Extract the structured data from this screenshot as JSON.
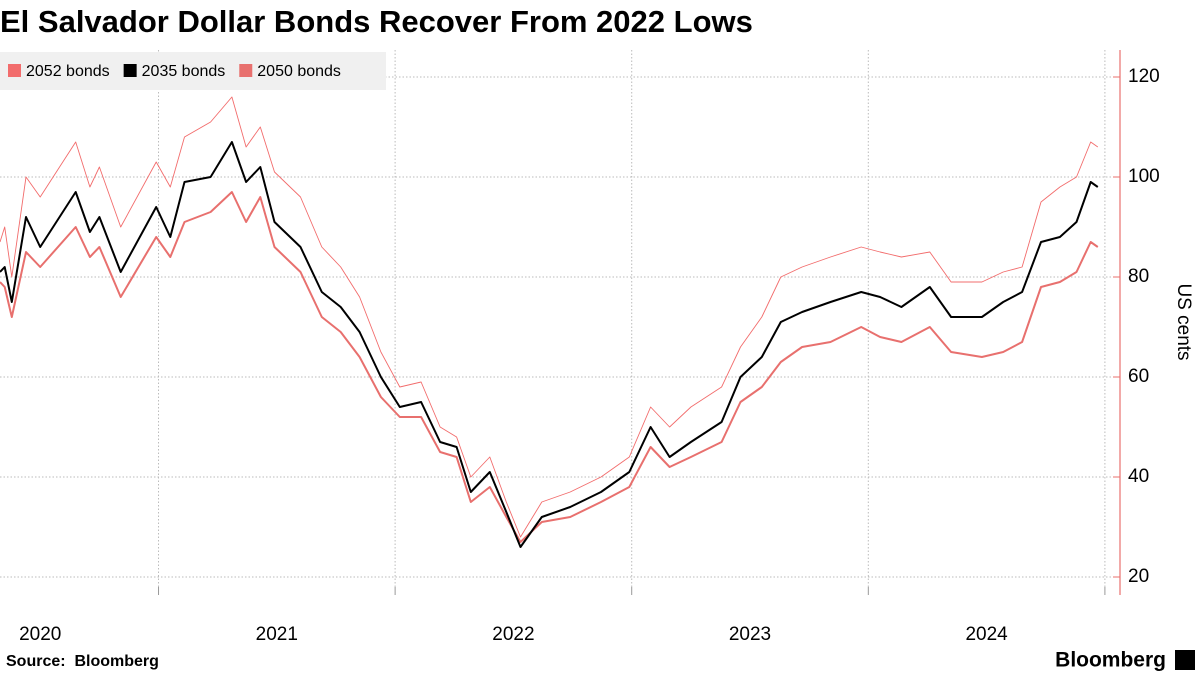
{
  "chart_data": {
    "type": "line",
    "title": "El Salvador Dollar Bonds Recover From 2022 Lows",
    "y_label": "US cents",
    "source": "Source:  Bloomberg",
    "brand": "Bloomberg",
    "legend": "top-left",
    "grid": true,
    "xlim": [
      2020.33,
      2025.03
    ],
    "xticks": [
      {
        "value": 2020,
        "label": "2020"
      },
      {
        "value": 2021,
        "label": "2021"
      },
      {
        "value": 2022,
        "label": "2022"
      },
      {
        "value": 2023,
        "label": "2023"
      },
      {
        "value": 2024,
        "label": "2024"
      }
    ],
    "xgrid": [
      2021,
      2022,
      2023,
      2024,
      2025
    ],
    "ylim": [
      16.4,
      125.4
    ],
    "yticks": [
      20,
      40,
      60,
      80,
      100,
      120
    ],
    "x": [
      2020.33,
      2020.35,
      2020.38,
      2020.44,
      2020.5,
      2020.65,
      2020.71,
      2020.75,
      2020.84,
      2020.99,
      2021.05,
      2021.11,
      2021.22,
      2021.31,
      2021.37,
      2021.43,
      2021.49,
      2021.6,
      2021.69,
      2021.77,
      2021.85,
      2021.94,
      2022.02,
      2022.11,
      2022.19,
      2022.26,
      2022.32,
      2022.4,
      2022.47,
      2022.53,
      2022.62,
      2022.74,
      2022.87,
      2022.99,
      2023.08,
      2023.16,
      2023.25,
      2023.38,
      2023.46,
      2023.55,
      2023.63,
      2023.72,
      2023.84,
      2023.97,
      2024.05,
      2024.14,
      2024.26,
      2024.35,
      2024.48,
      2024.57,
      2024.65,
      2024.73,
      2024.81,
      2024.88,
      2024.94,
      2024.97
    ],
    "series": [
      {
        "name": "2052 bonds",
        "color": "#f26c6c",
        "width": 0.9,
        "values": [
          87,
          90,
          80,
          100,
          96,
          107,
          98,
          102,
          90,
          103,
          98,
          108,
          111,
          116,
          106,
          110,
          101,
          96,
          86,
          82,
          76,
          65,
          58,
          59,
          50,
          48,
          40,
          44,
          35,
          28,
          35,
          37,
          40,
          44,
          54,
          50,
          54,
          58,
          66,
          72,
          80,
          82,
          84,
          86,
          85,
          84,
          85,
          79,
          79,
          81,
          82,
          95,
          98,
          100,
          107,
          106
        ]
      },
      {
        "name": "2035 bonds",
        "color": "#000000",
        "width": 2,
        "values": [
          81,
          82,
          75,
          92,
          86,
          97,
          89,
          92,
          81,
          94,
          88,
          99,
          100,
          107,
          99,
          102,
          91,
          86,
          77,
          74,
          69,
          60,
          54,
          55,
          47,
          46,
          37,
          41,
          33,
          26,
          32,
          34,
          37,
          41,
          50,
          44,
          47,
          51,
          60,
          64,
          71,
          73,
          75,
          77,
          76,
          74,
          78,
          72,
          72,
          75,
          77,
          87,
          88,
          91,
          99,
          98
        ]
      },
      {
        "name": "2050 bonds",
        "color": "#e8706e",
        "width": 2,
        "values": [
          79,
          78,
          72,
          85,
          82,
          90,
          84,
          86,
          76,
          88,
          84,
          91,
          93,
          97,
          91,
          96,
          86,
          81,
          72,
          69,
          64,
          56,
          52,
          52,
          45,
          44,
          35,
          38,
          32,
          27,
          31,
          32,
          35,
          38,
          46,
          42,
          44,
          47,
          55,
          58,
          63,
          66,
          67,
          70,
          68,
          67,
          70,
          65,
          64,
          65,
          67,
          78,
          79,
          81,
          87,
          86
        ]
      }
    ]
  }
}
